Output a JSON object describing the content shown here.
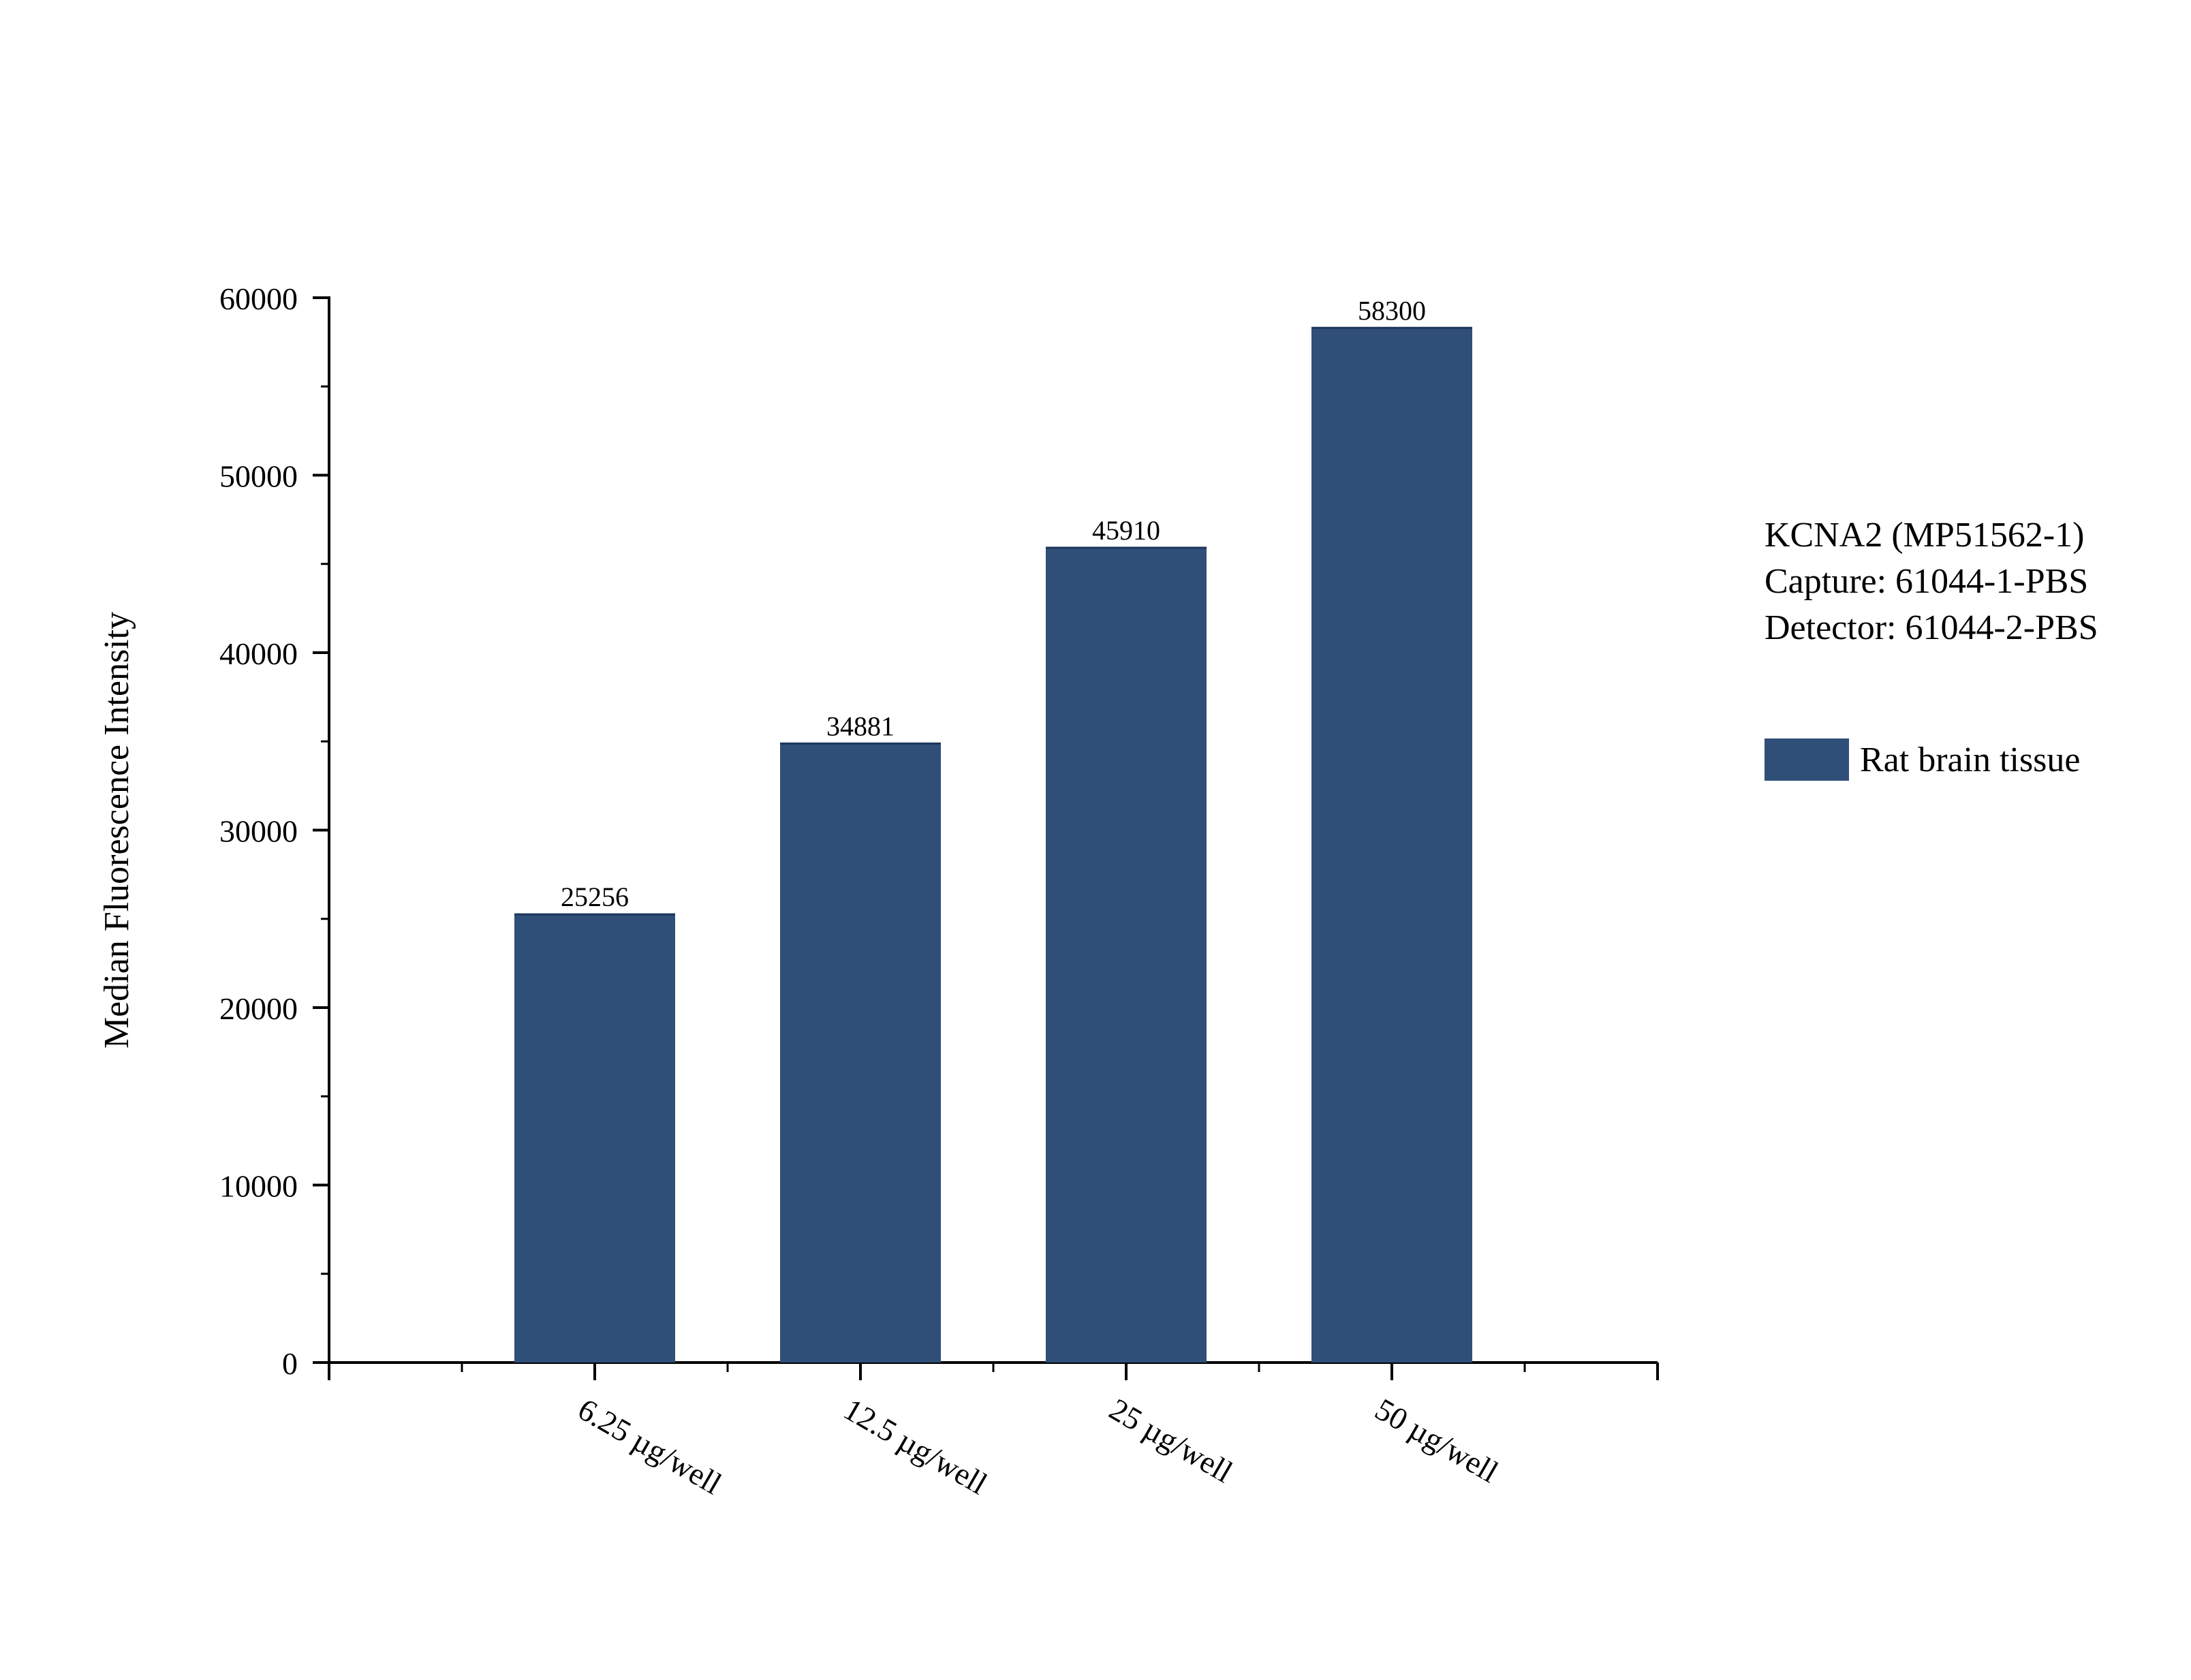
{
  "chart_data": {
    "type": "bar",
    "categories": [
      "6.25 µg/well",
      "12.5 µg/well",
      "25 µg/well",
      "50 µg/well"
    ],
    "series": [
      {
        "name": "Rat brain tissue",
        "values": [
          25256,
          34881,
          45910,
          58300
        ]
      }
    ],
    "data_labels": [
      "25256",
      "34881",
      "45910",
      "58300"
    ],
    "ylabel": "Median Fluorescence Intensity",
    "xlabel": "",
    "ylim": [
      0,
      60000
    ],
    "yticks": [
      0,
      10000,
      20000,
      30000,
      40000,
      50000,
      60000
    ],
    "ytick_labels": [
      "0",
      "10000",
      "20000",
      "30000",
      "40000",
      "50000",
      "60000"
    ],
    "grid": false,
    "legend_position": "right",
    "annotation_lines": [
      "KCNA2 (MP51562-1)",
      "Capture: 61044-1-PBS",
      "Detector: 61044-2-PBS"
    ],
    "bar_color": "#2f4f78"
  }
}
